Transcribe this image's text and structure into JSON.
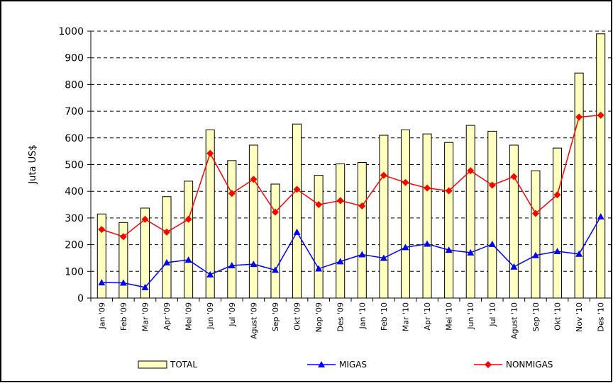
{
  "chart_data": {
    "type": "bar_line",
    "y_label": "Juta US$",
    "categories": [
      "Jan '09",
      "Feb '09",
      "Mar '09",
      "Apr '09",
      "Mei '09",
      "Jun '09",
      "Jul '09",
      "Agust '09",
      "Sep '09",
      "Okt '09",
      "Nop '09",
      "Des '09",
      "Jan '10",
      "Feb '10",
      "Mar '10",
      "Apr '10",
      "Mei '10",
      "Jun '10",
      "Jul '10",
      "Agust '10",
      "Sep '10",
      "Okt '10",
      "Nov '10",
      "Des '10"
    ],
    "series": [
      {
        "name": "TOTAL",
        "color": "#ffffc0",
        "kind": "bar",
        "values": [
          315,
          283,
          337,
          380,
          438,
          630,
          515,
          573,
          427,
          652,
          460,
          503,
          508,
          610,
          630,
          615,
          583,
          647,
          625,
          573,
          477,
          562,
          843,
          990
        ]
      },
      {
        "name": "MIGAS",
        "color": "#0000ff",
        "kind": "line",
        "marker": "triangle",
        "values": [
          58,
          57,
          40,
          133,
          143,
          88,
          122,
          127,
          105,
          247,
          110,
          137,
          163,
          150,
          190,
          203,
          180,
          170,
          202,
          117,
          160,
          175,
          165,
          305
        ]
      },
      {
        "name": "NONMIGAS",
        "color": "#ff0000",
        "kind": "line",
        "marker": "diamond",
        "values": [
          257,
          230,
          295,
          247,
          295,
          542,
          392,
          445,
          322,
          407,
          350,
          365,
          345,
          460,
          433,
          412,
          402,
          477,
          423,
          455,
          317,
          387,
          678,
          685
        ]
      }
    ],
    "ylim": [
      0,
      1000
    ],
    "yticks": [
      0,
      100,
      200,
      300,
      400,
      500,
      600,
      700,
      800,
      900,
      1000
    ],
    "grid": true
  }
}
